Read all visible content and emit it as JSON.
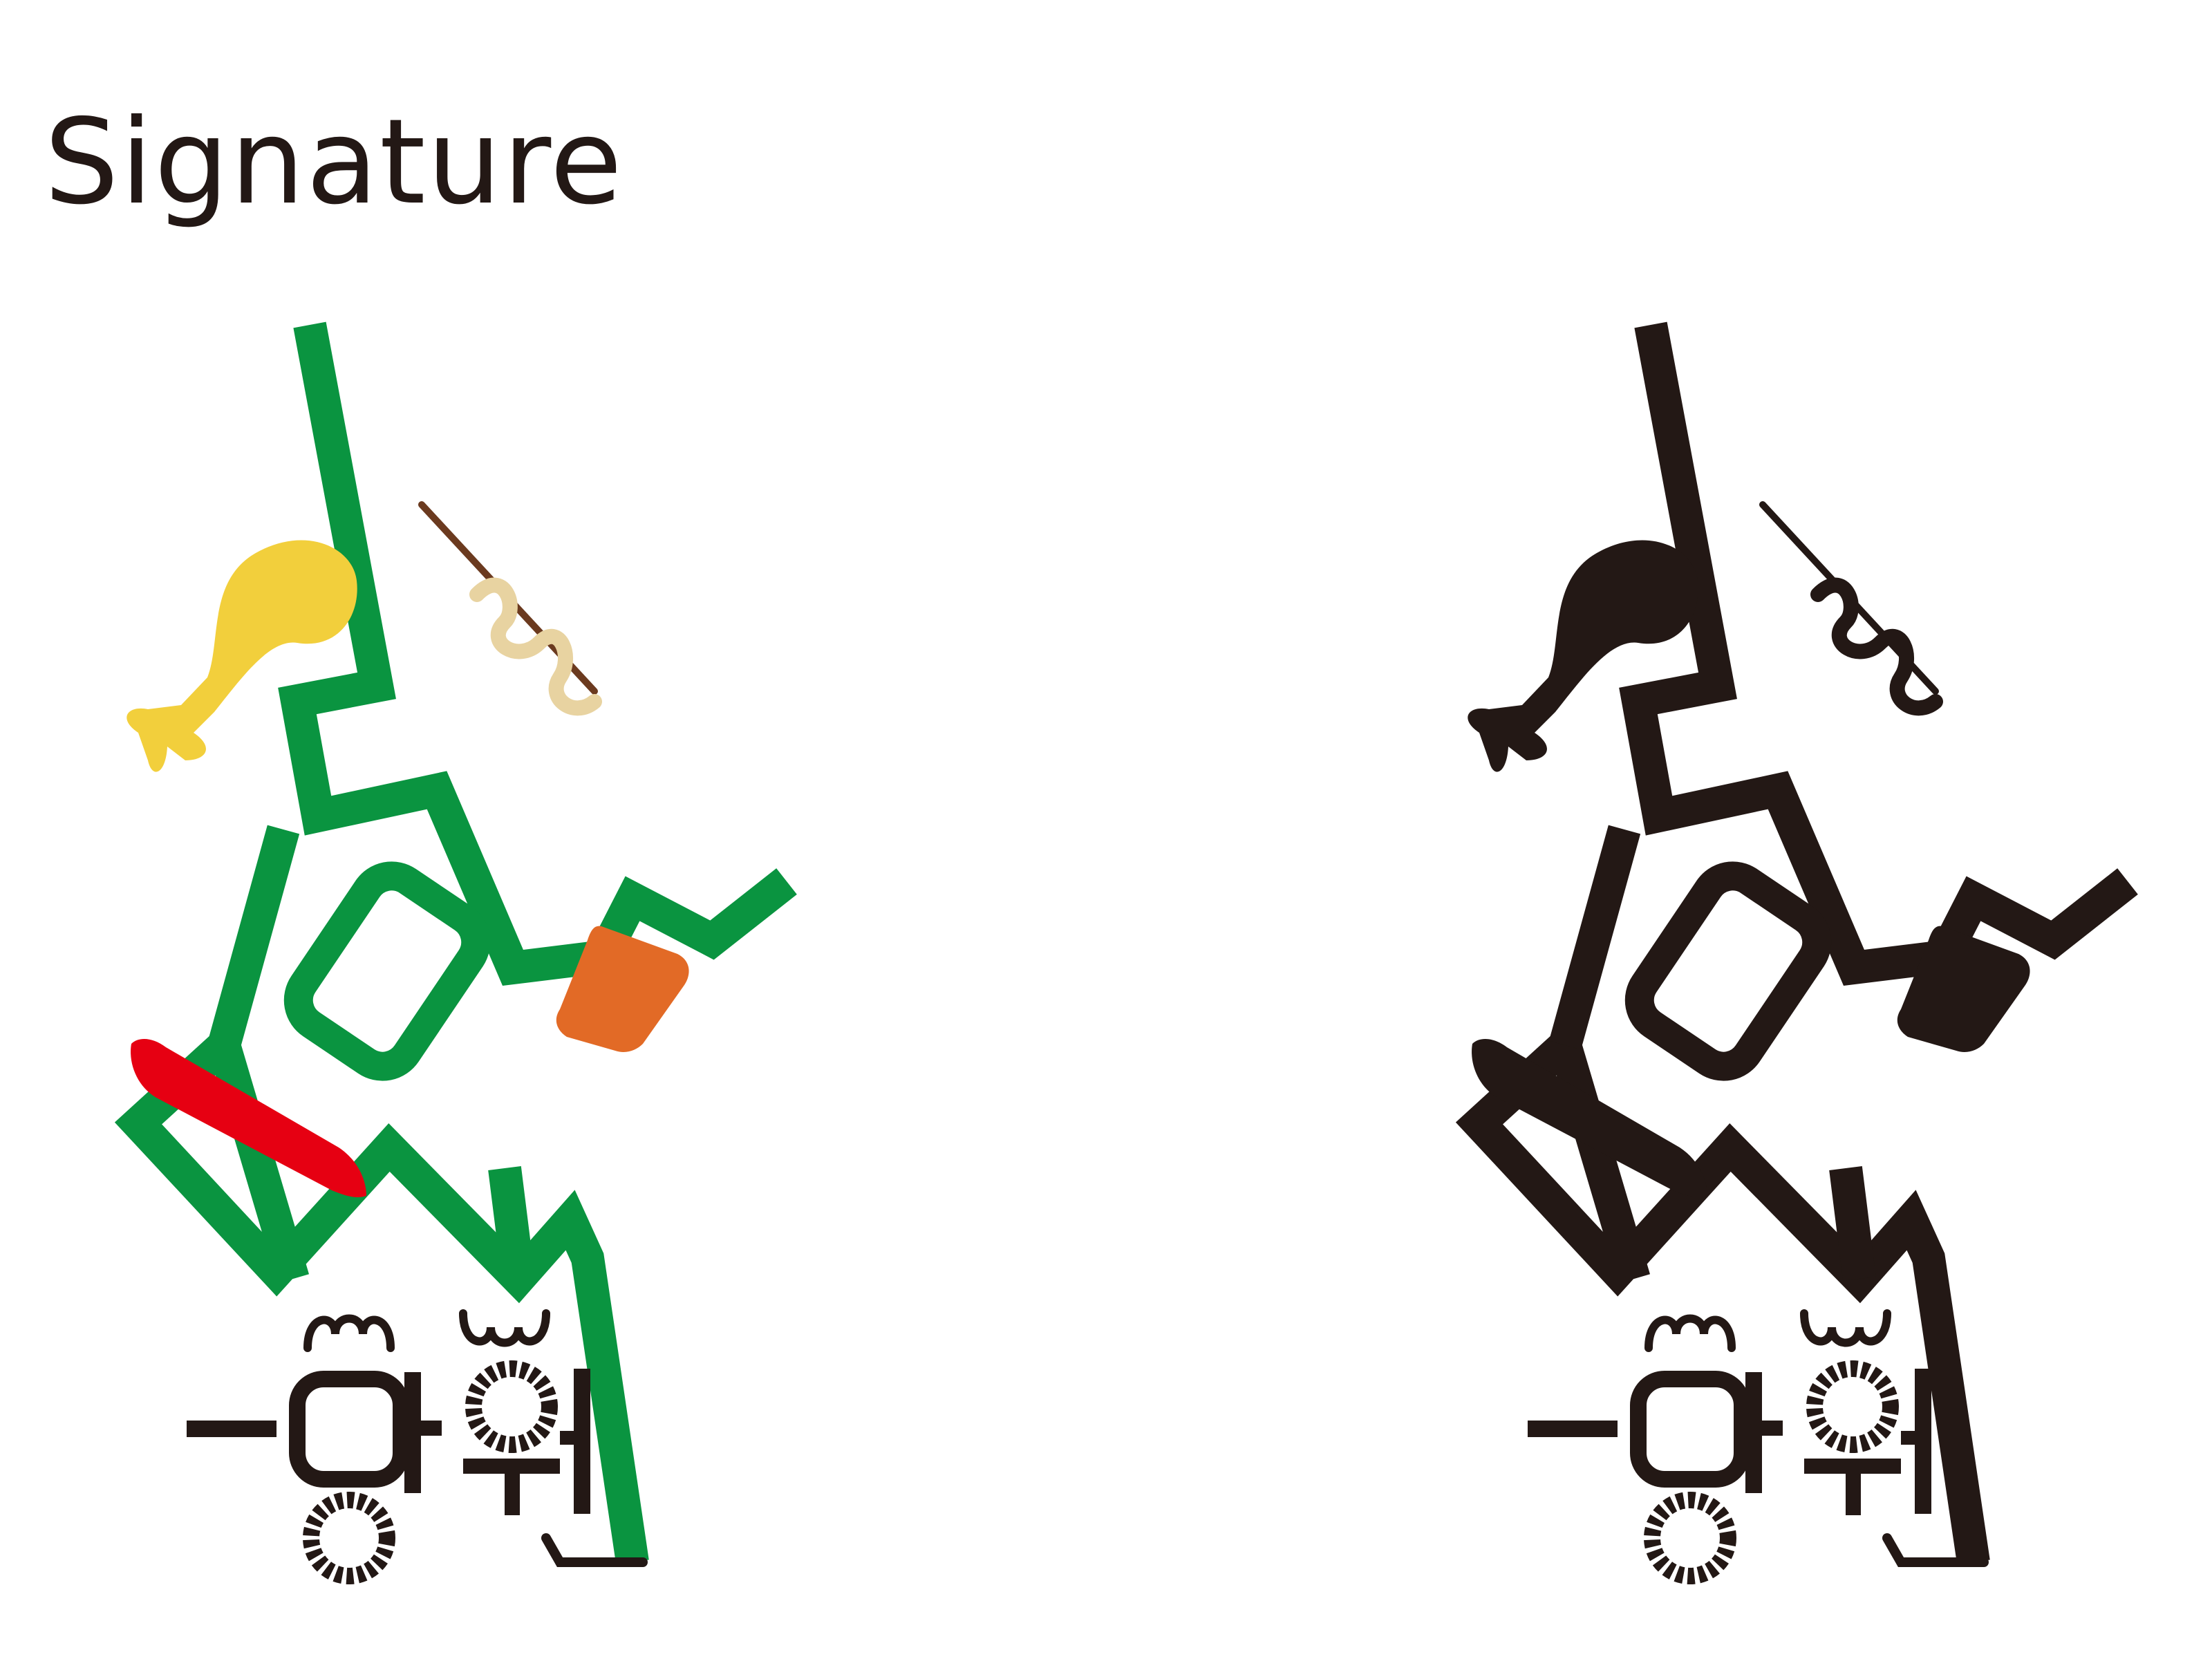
{
  "page": {
    "title": "Signature"
  },
  "logos": [
    {
      "variant": "color",
      "wordmark": "망원",
      "colors": {
        "frame": "#0a9440",
        "drumstick": "#f2cf3c",
        "skewer_stick": "#6b3a1f",
        "fishcake": "#e8d3a1",
        "orange_piece": "#e26a26",
        "red_piece": "#e60012",
        "wordmark": "#231815"
      }
    },
    {
      "variant": "monochrome",
      "wordmark": "망원",
      "colors": {
        "frame": "#231815",
        "drumstick": "#231815",
        "skewer_stick": "#231815",
        "fishcake": "#231815",
        "orange_piece": "#231815",
        "red_piece": "#231815",
        "wordmark": "#231815"
      }
    }
  ]
}
